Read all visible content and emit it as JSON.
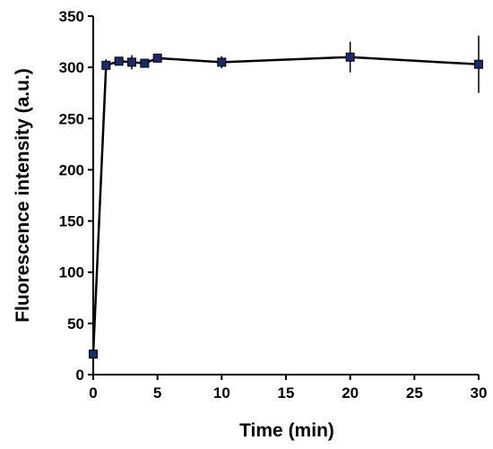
{
  "chart_data": {
    "type": "line",
    "xlabel": "Time (min)",
    "ylabel": "Fluorescence intensity (a.u.)",
    "xlim": [
      0,
      30
    ],
    "ylim": [
      0,
      350
    ],
    "x_ticks": [
      0,
      5,
      10,
      15,
      20,
      25,
      30
    ],
    "y_ticks": [
      0,
      50,
      100,
      150,
      200,
      250,
      300,
      350
    ],
    "grid": false,
    "legend": "none",
    "series": [
      {
        "x": [
          0,
          1,
          2,
          3,
          4,
          5,
          10,
          20,
          30
        ],
        "y": [
          20,
          302,
          306,
          305,
          304,
          309,
          305,
          310,
          303
        ],
        "error": [
          0,
          6,
          4,
          7,
          4,
          3,
          6,
          15,
          28
        ],
        "marker": "square",
        "color": "#1a2a6c"
      }
    ]
  }
}
